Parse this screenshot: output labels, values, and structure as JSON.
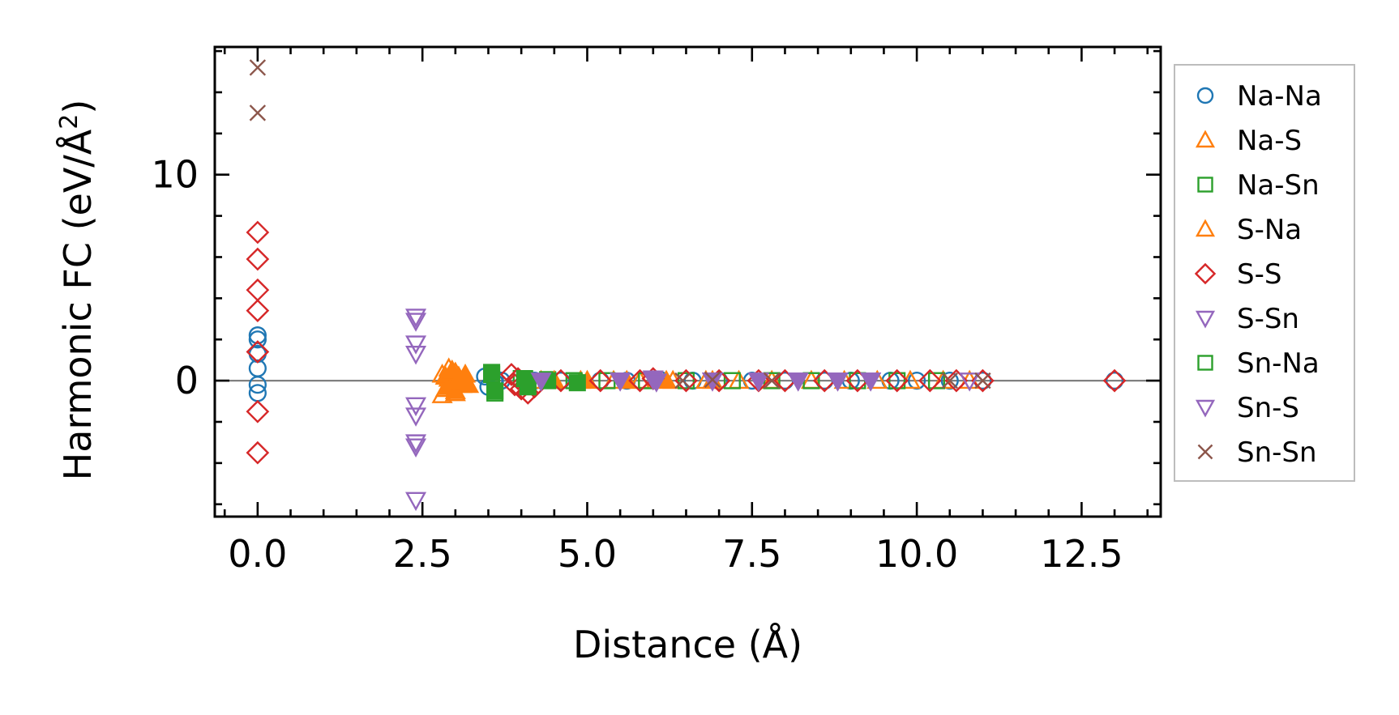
{
  "chart_data": {
    "type": "scatter",
    "title": "",
    "xlabel": "Distance (Å)",
    "ylabel": "Harmonic FC (eV/Å",
    "ylabel_superscript": "2",
    "ylabel_suffix": ")",
    "xlim": [
      -0.65,
      13.7
    ],
    "ylim": [
      -6.6,
      16.2
    ],
    "xticks": [
      0.0,
      2.5,
      5.0,
      7.5,
      10.0,
      12.5
    ],
    "xtick_labels": [
      "0.0",
      "2.5",
      "5.0",
      "7.5",
      "10.0",
      "12.5"
    ],
    "yticks": [
      0,
      10
    ],
    "ytick_labels": [
      "0",
      "10"
    ],
    "zero_line": true,
    "grid": false,
    "legend_position": "outside-right",
    "series": [
      {
        "name": "Na-Na",
        "marker": "circle",
        "color": "#1f77b4",
        "filled": false,
        "x": [
          0,
          0,
          0,
          0,
          0,
          0,
          3.45,
          3.5,
          3.6,
          3.6,
          3.7,
          4.2,
          4.6,
          5.2,
          5.6,
          6.1,
          6.6,
          7.0,
          7.5,
          8.0,
          8.6,
          9.0,
          9.6,
          10.0,
          10.5,
          11.0,
          13.0
        ],
        "y": [
          2.2,
          2.0,
          0.6,
          -0.2,
          -0.6,
          1.3,
          0.2,
          -0.3,
          0.1,
          -0.1,
          0.0,
          0.0,
          0.0,
          0.0,
          0.0,
          0.05,
          0.0,
          0.0,
          0.0,
          0.0,
          0.0,
          0.0,
          0.0,
          0.0,
          0.0,
          0.0,
          0.0
        ]
      },
      {
        "name": "Na-S",
        "marker": "triangle-up",
        "color": "#ff7f0e",
        "filled": false,
        "x": [
          2.8,
          2.85,
          2.9,
          2.95,
          3.0,
          3.05,
          3.1,
          2.8,
          2.9,
          3.0,
          4.3,
          4.9,
          5.4,
          5.8,
          6.3,
          6.8,
          7.3,
          7.8,
          8.4,
          8.9,
          9.4,
          9.9,
          10.4,
          10.8
        ],
        "y": [
          0.3,
          -0.4,
          0.6,
          0.0,
          -0.6,
          0.2,
          -0.2,
          -0.7,
          0.1,
          0.4,
          0.0,
          0.0,
          0.0,
          0.0,
          0.0,
          0.0,
          0.0,
          0.0,
          0.0,
          0.0,
          0.0,
          0.0,
          0.0,
          0.0
        ]
      },
      {
        "name": "Na-Sn",
        "marker": "square",
        "color": "#2ca02c",
        "filled": false,
        "x": [
          3.55,
          3.6,
          4.0,
          4.1,
          4.4,
          4.8,
          5.3,
          5.9,
          6.5,
          7.2,
          7.8,
          8.4,
          9.1,
          9.7,
          10.3
        ],
        "y": [
          0.3,
          -0.6,
          0.1,
          -0.2,
          0.05,
          0.0,
          0.0,
          0.0,
          0.0,
          0.0,
          0.0,
          0.0,
          0.0,
          0.0,
          0.0
        ]
      },
      {
        "name": "S-Na",
        "marker": "triangle-up",
        "color": "#ff7f0e",
        "filled": true,
        "x": [
          2.85,
          2.9,
          2.95,
          3.0,
          3.05,
          3.1,
          3.15,
          3.2,
          4.5,
          5.0,
          5.6,
          6.2,
          6.9
        ],
        "y": [
          0.2,
          -0.3,
          0.5,
          -0.5,
          0.1,
          -0.1,
          0.3,
          -0.2,
          0.0,
          0.0,
          0.0,
          0.0,
          0.0
        ]
      },
      {
        "name": "S-S",
        "marker": "diamond",
        "color": "#d62728",
        "filled": false,
        "x": [
          0,
          0,
          0,
          0,
          0,
          0,
          0,
          3.85,
          3.9,
          3.95,
          4.0,
          4.1,
          4.2,
          4.6,
          5.2,
          5.8,
          6.0,
          6.5,
          7.0,
          7.6,
          8.0,
          8.6,
          9.1,
          9.7,
          10.2,
          10.6,
          11.0,
          13.0
        ],
        "y": [
          7.2,
          5.9,
          4.4,
          3.4,
          1.4,
          -1.5,
          -3.5,
          0.3,
          -0.2,
          0.1,
          -0.4,
          -0.6,
          -0.3,
          0.0,
          0.0,
          0.0,
          0.1,
          0.0,
          0.0,
          0.0,
          0.0,
          0.0,
          0.0,
          0.0,
          0.0,
          0.0,
          0.0,
          0.0
        ]
      },
      {
        "name": "S-Sn",
        "marker": "triangle-down",
        "color": "#9467bd",
        "filled": false,
        "x": [
          2.4,
          2.4,
          2.4,
          2.4,
          2.4,
          2.4,
          2.4,
          2.4,
          2.4,
          5.5,
          6.0,
          6.9,
          7.6,
          8.2,
          8.8,
          9.3,
          10.8
        ],
        "y": [
          3.1,
          2.9,
          1.8,
          1.3,
          -1.2,
          -1.7,
          -3.0,
          -3.2,
          -5.8,
          0.0,
          0.05,
          0.0,
          0.0,
          0.0,
          0.0,
          0.0,
          0.0
        ]
      },
      {
        "name": "Sn-Na",
        "marker": "square",
        "color": "#2ca02c",
        "filled": true,
        "x": [
          3.55,
          3.6,
          4.05,
          4.1,
          4.4,
          4.85
        ],
        "y": [
          0.4,
          -0.5,
          0.1,
          -0.3,
          0.0,
          -0.1
        ]
      },
      {
        "name": "Sn-S",
        "marker": "triangle-down",
        "color": "#9467bd",
        "filled": true,
        "x": [
          4.3,
          5.5,
          6.0,
          6.05,
          6.9,
          7.6,
          8.2,
          8.8,
          9.3
        ],
        "y": [
          0.0,
          0.0,
          0.1,
          -0.05,
          0.0,
          0.0,
          0.0,
          0.0,
          0.0
        ]
      },
      {
        "name": "Sn-Sn",
        "marker": "x",
        "color": "#8c564b",
        "filled": false,
        "x": [
          0,
          0,
          6.45,
          6.9,
          7.8,
          10.5,
          11.0
        ],
        "y": [
          15.2,
          13.0,
          0.0,
          0.05,
          0.0,
          0.0,
          0.0
        ]
      }
    ]
  }
}
